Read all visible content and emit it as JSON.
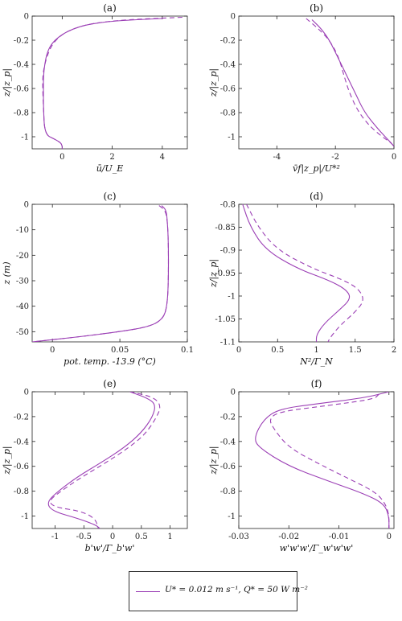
{
  "legend": {
    "label": "U* = 0.012 m s⁻¹, Q* = 50 W m⁻²"
  },
  "chart_data": [
    {
      "id": "a",
      "type": "line",
      "title": "(a)",
      "xlabel": "ū/U_E",
      "ylabel": "z/|z_p|",
      "xlim": [
        -1.2,
        5
      ],
      "ylim": [
        -1.1,
        0
      ],
      "xticks": [
        0,
        2,
        4
      ],
      "xticklabels": [
        "0",
        "2",
        "4"
      ],
      "yticks": [
        0,
        -0.2,
        -0.4,
        -0.6,
        -0.8,
        -1
      ],
      "yticklabels": [
        "0",
        "-0.2",
        "-0.4",
        "-0.6",
        "-0.8",
        "-1"
      ],
      "series": [
        {
          "style": "solid",
          "x": [
            4.0,
            2.0,
            1.0,
            0.5,
            0.0,
            -0.4,
            -0.6,
            -0.7,
            -0.75,
            -0.75,
            -0.75,
            -0.7,
            -0.3,
            -0.05,
            0.0,
            0.0
          ],
          "y": [
            -0.02,
            -0.04,
            -0.07,
            -0.1,
            -0.15,
            -0.22,
            -0.3,
            -0.4,
            -0.5,
            -0.6,
            -0.75,
            -0.98,
            -1.02,
            -1.05,
            -1.08,
            -1.1
          ]
        },
        {
          "style": "dashed",
          "x": [
            4.8,
            2.5,
            1.2,
            0.5,
            0.0,
            -0.35,
            -0.55,
            -0.7,
            -0.78,
            -0.78,
            -0.75,
            -0.7,
            -0.3,
            -0.05,
            0.0,
            0.0
          ],
          "y": [
            -0.01,
            -0.03,
            -0.06,
            -0.1,
            -0.15,
            -0.22,
            -0.3,
            -0.4,
            -0.5,
            -0.6,
            -0.75,
            -0.98,
            -1.02,
            -1.05,
            -1.08,
            -1.1
          ]
        }
      ]
    },
    {
      "id": "b",
      "type": "line",
      "title": "(b)",
      "xlabel": "v̄f|z_p|/U*²",
      "ylabel": "z/|z_p|",
      "xlim": [
        -5.3,
        0
      ],
      "ylim": [
        -1.1,
        0
      ],
      "xticks": [
        -4,
        -2,
        0
      ],
      "xticklabels": [
        "-4",
        "-2",
        "0"
      ],
      "yticks": [
        0,
        -0.2,
        -0.4,
        -0.6,
        -0.8,
        -1
      ],
      "yticklabels": [
        "0",
        "-0.2",
        "-0.4",
        "-0.6",
        "-0.8",
        "-1"
      ],
      "series": [
        {
          "style": "solid",
          "x": [
            -2.8,
            -2.5,
            -2.2,
            -1.9,
            -1.6,
            -1.3,
            -1.0,
            -0.6,
            -0.3,
            -0.1,
            0.0
          ],
          "y": [
            -0.03,
            -0.1,
            -0.2,
            -0.35,
            -0.5,
            -0.65,
            -0.8,
            -0.92,
            -1.0,
            -1.05,
            -1.08
          ]
        },
        {
          "style": "dashed",
          "x": [
            -3.0,
            -2.6,
            -2.2,
            -1.9,
            -1.7,
            -1.5,
            -1.2,
            -0.8,
            -0.4,
            -0.1,
            0.0
          ],
          "y": [
            -0.02,
            -0.1,
            -0.2,
            -0.33,
            -0.5,
            -0.65,
            -0.8,
            -0.92,
            -1.0,
            -1.05,
            -1.08
          ]
        }
      ]
    },
    {
      "id": "c",
      "type": "line",
      "title": "(c)",
      "xlabel": "pot. temp. -13.9 (°C)",
      "ylabel": "z (m)",
      "xlim": [
        -0.015,
        0.1
      ],
      "ylim": [
        -54,
        0
      ],
      "xticks": [
        0,
        0.05,
        0.1
      ],
      "xticklabels": [
        "0",
        "0.05",
        "0.1"
      ],
      "yticks": [
        0,
        -10,
        -20,
        -30,
        -40,
        -50
      ],
      "yticklabels": [
        "0",
        "-10",
        "-20",
        "-30",
        "-40",
        "-50"
      ],
      "series": [
        {
          "style": "solid",
          "x": [
            0.081,
            0.084,
            0.085,
            0.086,
            0.086,
            0.085,
            0.082,
            0.072,
            0.05,
            0.02,
            -0.015
          ],
          "y": [
            -0.5,
            -2,
            -5,
            -15,
            -30,
            -40,
            -45,
            -48,
            -50,
            -52,
            -54
          ]
        },
        {
          "style": "dashed",
          "x": [
            0.079,
            0.083,
            0.085,
            0.086,
            0.086,
            0.085,
            0.082,
            0.072,
            0.05,
            0.02,
            -0.015
          ],
          "y": [
            -0.5,
            -2,
            -5,
            -15,
            -30,
            -40,
            -45,
            -48,
            -50,
            -52,
            -54
          ]
        }
      ]
    },
    {
      "id": "d",
      "type": "line",
      "title": "(d)",
      "xlabel": "N²/Γ_N",
      "ylabel": "z/|z_p|",
      "xlim": [
        0,
        2
      ],
      "ylim": [
        -1.1,
        -0.8
      ],
      "xticks": [
        0,
        0.5,
        1,
        1.5,
        2
      ],
      "xticklabels": [
        "0",
        "0.5",
        "1",
        "1.5",
        "2"
      ],
      "yticks": [
        -0.8,
        -0.85,
        -0.9,
        -0.95,
        -1,
        -1.05,
        -1.1
      ],
      "yticklabels": [
        "-0.8",
        "-0.85",
        "-0.9",
        "-0.95",
        "-1",
        "-1.05",
        "-1.1"
      ],
      "series": [
        {
          "style": "solid",
          "x": [
            0.05,
            0.15,
            0.35,
            0.75,
            1.15,
            1.38,
            1.45,
            1.3,
            1.1,
            1.0,
            1.0
          ],
          "y": [
            -0.8,
            -0.85,
            -0.9,
            -0.94,
            -0.965,
            -0.985,
            -1.005,
            -1.03,
            -1.06,
            -1.085,
            -1.1
          ]
        },
        {
          "style": "dashed",
          "x": [
            0.1,
            0.25,
            0.5,
            0.95,
            1.35,
            1.55,
            1.62,
            1.5,
            1.3,
            1.18,
            1.15
          ],
          "y": [
            -0.8,
            -0.85,
            -0.9,
            -0.94,
            -0.965,
            -0.985,
            -1.01,
            -1.035,
            -1.065,
            -1.09,
            -1.1
          ]
        }
      ]
    },
    {
      "id": "e",
      "type": "line",
      "title": "(e)",
      "xlabel": "b'w'/Γ_b'w'",
      "ylabel": "z/|z_p|",
      "xlim": [
        -1.4,
        1.3
      ],
      "ylim": [
        -1.1,
        0
      ],
      "xticks": [
        -1,
        -0.5,
        0,
        0.5,
        1
      ],
      "xticklabels": [
        "-1",
        "-0.5",
        "0",
        "0.5",
        "1"
      ],
      "yticks": [
        0,
        -0.2,
        -0.4,
        -0.6,
        -0.8,
        -1
      ],
      "yticklabels": [
        "0",
        "-0.2",
        "-0.4",
        "-0.6",
        "-0.8",
        "-1"
      ],
      "series": [
        {
          "style": "solid",
          "x": [
            0.3,
            0.6,
            0.75,
            0.7,
            0.5,
            0.2,
            -0.2,
            -0.6,
            -0.95,
            -1.15,
            -1.05,
            -0.6,
            -0.3,
            -0.22
          ],
          "y": [
            0.0,
            -0.05,
            -0.1,
            -0.2,
            -0.33,
            -0.45,
            -0.57,
            -0.68,
            -0.8,
            -0.89,
            -0.96,
            -1.02,
            -1.07,
            -1.1
          ]
        },
        {
          "style": "dashed",
          "x": [
            0.3,
            0.7,
            0.85,
            0.75,
            0.55,
            0.25,
            -0.15,
            -0.55,
            -0.9,
            -1.12,
            -1.0,
            -0.55,
            -0.3,
            -0.25
          ],
          "y": [
            0.0,
            -0.04,
            -0.11,
            -0.22,
            -0.35,
            -0.46,
            -0.58,
            -0.69,
            -0.8,
            -0.88,
            -0.93,
            -0.96,
            -1.02,
            -1.1
          ]
        }
      ]
    },
    {
      "id": "f",
      "type": "line",
      "title": "(f)",
      "xlabel": "w'w'w'/Γ_w'w'w'",
      "ylabel": "z/|z_p|",
      "xlim": [
        -0.03,
        0.001
      ],
      "ylim": [
        -1.1,
        0
      ],
      "xticks": [
        -0.03,
        -0.02,
        -0.01,
        0
      ],
      "xticklabels": [
        "-0.03",
        "-0.02",
        "-0.01",
        "0"
      ],
      "yticks": [
        0,
        -0.2,
        -0.4,
        -0.6,
        -0.8,
        -1
      ],
      "yticklabels": [
        "0",
        "-0.2",
        "-0.4",
        "-0.6",
        "-0.8",
        "-1"
      ],
      "series": [
        {
          "style": "solid",
          "x": [
            0.0,
            -0.005,
            -0.015,
            -0.022,
            -0.025,
            -0.027,
            -0.026,
            -0.02,
            -0.012,
            -0.005,
            -0.001,
            0.0,
            0.0
          ],
          "y": [
            0.0,
            -0.05,
            -0.1,
            -0.14,
            -0.22,
            -0.37,
            -0.45,
            -0.6,
            -0.72,
            -0.82,
            -0.9,
            -1.0,
            -1.1
          ]
        },
        {
          "style": "dashed",
          "x": [
            -0.002,
            -0.003,
            -0.012,
            -0.022,
            -0.024,
            -0.023,
            -0.02,
            -0.014,
            -0.008,
            -0.003,
            -0.001,
            0.0,
            0.0
          ],
          "y": [
            -0.02,
            -0.06,
            -0.11,
            -0.16,
            -0.22,
            -0.3,
            -0.45,
            -0.58,
            -0.7,
            -0.8,
            -0.88,
            -0.98,
            -1.1
          ]
        }
      ]
    }
  ]
}
